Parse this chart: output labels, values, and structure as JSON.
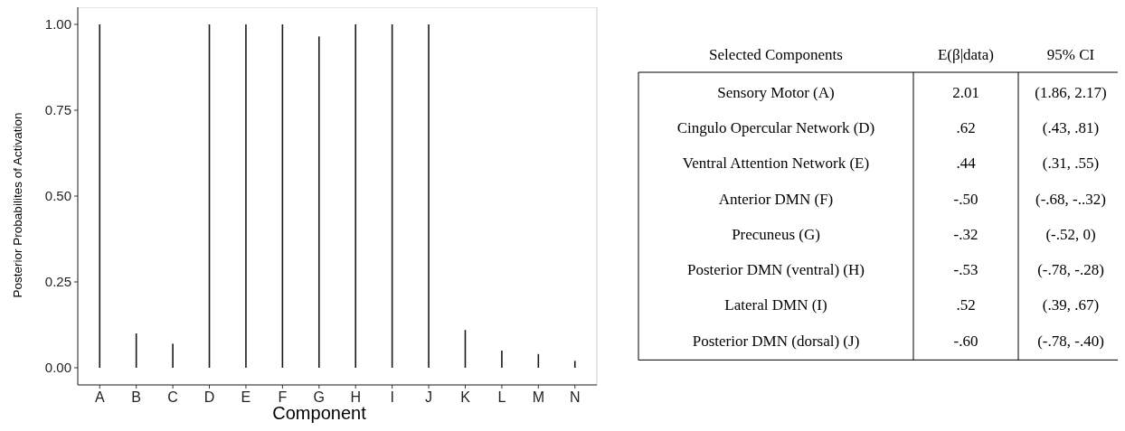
{
  "chart_data": [
    {
      "type": "bar",
      "xlabel": "Component",
      "ylabel": "Posterior Probabilites of Activation",
      "categories": [
        "A",
        "B",
        "C",
        "D",
        "E",
        "F",
        "G",
        "H",
        "I",
        "J",
        "K",
        "L",
        "M",
        "N"
      ],
      "values": [
        1.0,
        0.1,
        0.07,
        1.0,
        1.0,
        1.0,
        0.965,
        1.0,
        1.0,
        1.0,
        0.11,
        0.05,
        0.04,
        0.02
      ],
      "color": "#1a1a1a",
      "ylim": [
        -0.05,
        1.05
      ],
      "yticks": [
        {
          "value": 0,
          "label": "0.00"
        },
        {
          "value": 0.25,
          "label": "0.25"
        },
        {
          "value": 0.5,
          "label": "0.50"
        },
        {
          "value": 0.75,
          "label": "0.75"
        },
        {
          "value": 1,
          "label": "1.00"
        }
      ],
      "grid": false
    },
    {
      "type": "other",
      "categories": [
        "Selected Components",
        "E(β|data)",
        "95% CI"
      ],
      "cell_labels": [
        [
          "Sensory Motor (A)",
          "2.01",
          "(1.86, 2.17)"
        ],
        [
          "Cingulo Opercular Network (D)",
          ".62",
          "(.43, .81)"
        ],
        [
          "Ventral Attention Network (E)",
          ".44",
          "(.31, .55)"
        ],
        [
          "Anterior DMN (F)",
          "-.50",
          "(-.68, -..32)"
        ],
        [
          "Precuneus (G)",
          "-.32",
          "(-.52, 0)"
        ],
        [
          "Posterior DMN (ventral) (H)",
          "-.53",
          "(-.78, -.28)"
        ],
        [
          "Lateral DMN (I)",
          ".52",
          "(.39, .67)"
        ],
        [
          "Posterior DMN (dorsal) (J)",
          "-.60",
          "(-.78, -.40)"
        ]
      ]
    }
  ]
}
